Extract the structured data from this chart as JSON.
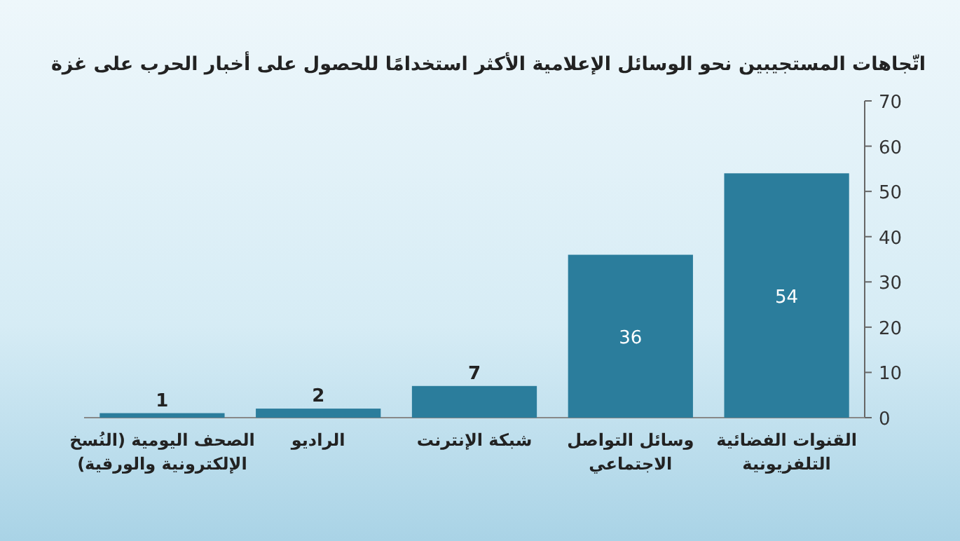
{
  "chart_data": {
    "type": "bar",
    "title": "اتّجاهات المستجيبين نحو الوسائل الإعلامية الأكثر استخدامًا للحصول على أخبار الحرب على غزة",
    "categories": [
      "الصحف اليومية (النُسخ\nالإلكترونية والورقية)",
      "الراديو",
      "شبكة الإنترنت",
      "وسائل التواصل\nالاجتماعي",
      "القنوات الفضائية\nالتلفزيونية"
    ],
    "values": [
      1,
      2,
      7,
      36,
      54
    ],
    "color": "#2b7d9c",
    "ylim": [
      0,
      70
    ],
    "yticks": [
      0,
      10,
      20,
      30,
      40,
      50,
      60,
      70
    ],
    "data_labels": true,
    "grid": false
  }
}
